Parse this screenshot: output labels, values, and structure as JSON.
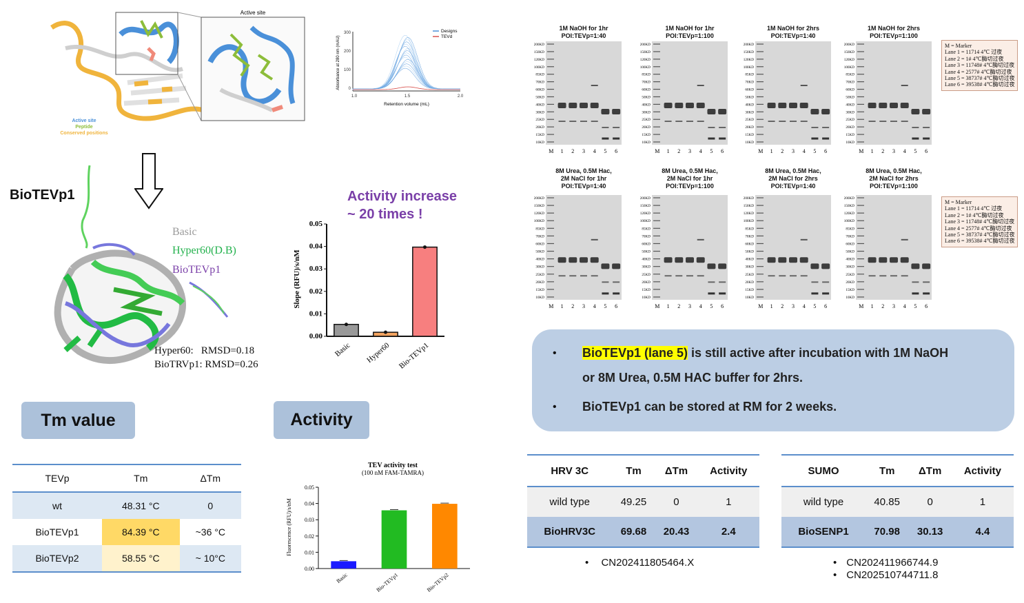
{
  "structure": {
    "active_site_title": "Active site",
    "legend": {
      "active_site": "Active site",
      "peptide": "Peptide",
      "conserved": "Conserved positions"
    },
    "colors": {
      "active_site": "#4a90d9",
      "peptide": "#8dbd3a",
      "conserved": "#f0b43c"
    }
  },
  "chromatogram": {
    "ylabel": "Absorbance at 280 nm (mAU)",
    "xlabel": "Retention volume (mL)",
    "yticks": [
      "300",
      "200",
      "100",
      "0"
    ],
    "xticks": [
      "1.0",
      "1.5",
      "2.0"
    ],
    "legend": [
      "Designs",
      "TEVd"
    ]
  },
  "biotev": {
    "name": "BioTEVp1",
    "legend": {
      "basic": "Basic",
      "hyper": "Hyper60(D.B)",
      "biotev": "BioTEVp1"
    },
    "rmsd1": "Hyper60:   RMSD=0.18",
    "rmsd2": "BioTRVp1: RMSD=0.26"
  },
  "activity_note": {
    "line1": "Activity increase",
    "line2": "~ 20 times !"
  },
  "slope_chart": {
    "type": "bar",
    "ylabel": "Slope (RFU)/s/nM",
    "categories": [
      "Basic",
      "Hyper60",
      "Bio-TEVp1"
    ],
    "values": [
      0.0053,
      0.0018,
      0.0397
    ],
    "colors": [
      "#999999",
      "#f4a460",
      "#f77f7f"
    ],
    "ylim": [
      0,
      0.05
    ],
    "yticks": [
      "0.00",
      "0.01",
      "0.02",
      "0.03",
      "0.04",
      "0.05"
    ]
  },
  "pills": {
    "tm": "Tm value",
    "activity": "Activity"
  },
  "tm_table": {
    "headers": [
      "TEVp",
      "Tm",
      "ΔTm"
    ],
    "rows": [
      [
        "wt",
        "48.31 °C",
        "0"
      ],
      [
        "BioTEVp1",
        "84.39 °C",
        "~36 °C"
      ],
      [
        "BioTEVp2",
        "58.55 °C",
        "~ 10°C"
      ]
    ]
  },
  "tev_chart": {
    "type": "bar",
    "title": "TEV activity  test",
    "subtitle": "(100 nM FAM-TAMRA)",
    "ylabel": "Fluorescence (RFU)/s/nM",
    "categories": [
      "Basic",
      "Bio-TEVp1",
      "Bio-TEVp2"
    ],
    "values": [
      0.0045,
      0.0358,
      0.0398
    ],
    "colors": [
      "#1a1aff",
      "#22bb22",
      "#ff8800"
    ],
    "ylim": [
      0,
      0.05
    ],
    "yticks": [
      "0.00",
      "0.01",
      "0.02",
      "0.03",
      "0.04",
      "0.05"
    ]
  },
  "gels": {
    "row1_titles": [
      [
        "1M NaOH for 1hr",
        "POI:TEVp=1:40"
      ],
      [
        "1M NaOH for 1hr",
        "POI:TEVp=1:100"
      ],
      [
        "1M NaOH for 2hrs",
        "POI:TEVp=1:40"
      ],
      [
        "1M NaOH for 2hrs",
        "POI:TEVp=1:100"
      ]
    ],
    "row2_titles": [
      [
        "8M Urea, 0.5M Hac,",
        "2M NaCl for 1hr",
        "POI:TEVp=1:40"
      ],
      [
        "8M Urea, 0.5M Hac,",
        "2M NaCl for 1hr",
        "POI:TEVp=1:100"
      ],
      [
        "8M Urea, 0.5M Hac,",
        "2M NaCl for 2hrs",
        "POI:TEVp=1:40"
      ],
      [
        "8M Urea, 0.5M Hac,",
        "2M NaCl for 2hrs",
        "POI:TEVp=1:100"
      ]
    ],
    "markers": [
      "200KD",
      "150KD",
      "120KD",
      "100KD",
      "85KD",
      "70KD",
      "60KD",
      "50KD",
      "40KD",
      "30KD",
      "25KD",
      "20KD",
      "15KD",
      "10KD"
    ],
    "lanes": [
      "M",
      "1",
      "2",
      "3",
      "4",
      "5",
      "6"
    ],
    "legend": [
      "M = Marker",
      "Lane 1 = 11714 4℃ 过夜",
      "Lane 2 = 1# 4℃酶切过夜",
      "Lane 3 = 11748# 4℃酶切过夜",
      "Lane 4 = 2577# 4℃酶切过夜",
      "Lane 5 = 38737# 4℃酶切过夜",
      "Lane 6 = 39538# 4℃酶切过夜"
    ]
  },
  "summary": {
    "highlight": "BioTEVp1 (lane 5)",
    "line1_rest": " is still active after incubation with 1M NaOH",
    "line1_cont": "or 8M Urea, 0.5M HAC buffer for 2hrs.",
    "line2": "BioTEVp1 can be stored at RM for 2 weeks.",
    "bullet": "•"
  },
  "hrv_table": {
    "headers": [
      "HRV 3C",
      "Tm",
      "ΔTm",
      "Activity"
    ],
    "rows": [
      [
        "wild type",
        "49.25",
        "0",
        "1"
      ],
      [
        "BioHRV3C",
        "69.68",
        "20.43",
        "2.4"
      ]
    ],
    "patents": [
      "CN202411805464.X"
    ]
  },
  "sumo_table": {
    "headers": [
      "SUMO",
      "Tm",
      "ΔTm",
      "Activity"
    ],
    "rows": [
      [
        "wild type",
        "40.85",
        "0",
        "1"
      ],
      [
        "BioSENP1",
        "70.98",
        "30.13",
        "4.4"
      ]
    ],
    "patents": [
      "CN202411966744.9",
      "CN202510744711.8"
    ]
  }
}
